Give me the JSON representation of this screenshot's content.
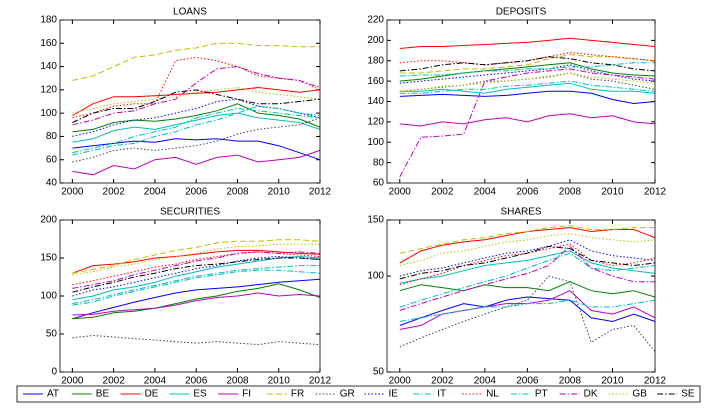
{
  "legend": {
    "entries": [
      {
        "name": "AT",
        "color": "#0000ff",
        "style": "solid"
      },
      {
        "name": "BE",
        "color": "#008000",
        "style": "solid"
      },
      {
        "name": "DE",
        "color": "#ff0000",
        "style": "solid"
      },
      {
        "name": "ES",
        "color": "#00bfbf",
        "style": "solid"
      },
      {
        "name": "FI",
        "color": "#bf00bf",
        "style": "solid"
      },
      {
        "name": "FR",
        "color": "#bfbf00",
        "style": "dashed"
      },
      {
        "name": "GR",
        "color": "#404040",
        "style": "dotted"
      },
      {
        "name": "IE",
        "color": "#0000ff",
        "style": "dotted"
      },
      {
        "name": "IT",
        "color": "#00bfbf",
        "style": "dashdot"
      },
      {
        "name": "NL",
        "color": "#ff0000",
        "style": "dotted"
      },
      {
        "name": "PT",
        "color": "#00bfbf",
        "style": "dashdot"
      },
      {
        "name": "DK",
        "color": "#bf00bf",
        "style": "dashdot"
      },
      {
        "name": "GB",
        "color": "#bfbf00",
        "style": "dotted"
      },
      {
        "name": "SE",
        "color": "#000000",
        "style": "dashdot"
      }
    ]
  },
  "chart_data": [
    {
      "type": "line",
      "title": "LOANS",
      "x": [
        2000,
        2001,
        2002,
        2003,
        2004,
        2005,
        2006,
        2007,
        2008,
        2009,
        2010,
        2011,
        2012
      ],
      "xlim": [
        1999.4,
        2012
      ],
      "xticks": [
        2000,
        2002,
        2004,
        2006,
        2008,
        2010,
        2012
      ],
      "ylim": [
        40,
        180
      ],
      "yticks": [
        40,
        60,
        80,
        100,
        120,
        140,
        160,
        180
      ],
      "yscale": "linear",
      "series": [
        {
          "values": [
            70,
            72,
            74,
            76,
            75,
            78,
            77,
            78,
            76,
            76,
            72,
            66,
            60
          ]
        },
        {
          "values": [
            84,
            86,
            92,
            94,
            93,
            95,
            98,
            102,
            108,
            100,
            98,
            95,
            88
          ]
        },
        {
          "values": [
            98,
            108,
            114,
            114,
            115,
            116,
            117,
            118,
            120,
            122,
            120,
            118,
            120
          ]
        },
        {
          "values": [
            75,
            78,
            85,
            88,
            86,
            90,
            94,
            98,
            100,
            96,
            94,
            92,
            86
          ]
        },
        {
          "values": [
            50,
            47,
            55,
            52,
            60,
            62,
            56,
            62,
            64,
            58,
            60,
            62,
            68
          ]
        },
        {
          "values": [
            128,
            132,
            140,
            148,
            150,
            154,
            156,
            160,
            160,
            158,
            158,
            157,
            157
          ]
        },
        {
          "values": [
            58,
            62,
            68,
            70,
            68,
            70,
            72,
            76,
            82,
            86,
            88,
            90,
            96
          ]
        },
        {
          "values": [
            80,
            84,
            90,
            94,
            96,
            100,
            104,
            110,
            112,
            106,
            104,
            100,
            96
          ]
        },
        {
          "values": [
            66,
            70,
            74,
            80,
            84,
            88,
            96,
            100,
            104,
            102,
            100,
            98,
            96
          ]
        },
        {
          "values": [
            96,
            100,
            106,
            108,
            108,
            145,
            148,
            145,
            140,
            132,
            130,
            128,
            120
          ]
        },
        {
          "values": [
            64,
            68,
            72,
            74,
            80,
            84,
            90,
            94,
            100,
            106,
            104,
            100,
            98
          ]
        },
        {
          "values": [
            90,
            94,
            100,
            102,
            108,
            112,
            126,
            138,
            140,
            134,
            130,
            128,
            122
          ]
        },
        {
          "values": [
            100,
            104,
            108,
            110,
            112,
            114,
            118,
            120,
            122,
            118,
            116,
            114,
            112
          ]
        },
        {
          "values": [
            92,
            100,
            104,
            104,
            110,
            118,
            120,
            116,
            112,
            108,
            108,
            110,
            112
          ]
        }
      ]
    },
    {
      "type": "line",
      "title": "DEPOSITS",
      "x": [
        2000,
        2001,
        2002,
        2003,
        2004,
        2005,
        2006,
        2007,
        2008,
        2009,
        2010,
        2011,
        2012
      ],
      "xlim": [
        1999.4,
        2012
      ],
      "xticks": [
        2000,
        2002,
        2004,
        2006,
        2008,
        2010,
        2012
      ],
      "ylim": [
        60,
        220
      ],
      "yticks": [
        60,
        80,
        100,
        120,
        140,
        160,
        180,
        200,
        220
      ],
      "yscale": "linear",
      "series": [
        {
          "values": [
            145,
            146,
            147,
            146,
            145,
            146,
            148,
            150,
            150,
            148,
            142,
            138,
            140
          ]
        },
        {
          "values": [
            160,
            162,
            165,
            168,
            170,
            172,
            174,
            176,
            178,
            172,
            168,
            166,
            165
          ]
        },
        {
          "values": [
            192,
            194,
            194,
            195,
            196,
            197,
            198,
            200,
            202,
            200,
            198,
            196,
            194
          ]
        },
        {
          "values": [
            150,
            150,
            152,
            150,
            148,
            152,
            154,
            156,
            158,
            152,
            150,
            150,
            148
          ]
        },
        {
          "values": [
            118,
            116,
            120,
            118,
            122,
            124,
            120,
            126,
            128,
            124,
            126,
            120,
            118
          ]
        },
        {
          "values": [
            168,
            168,
            170,
            172,
            172,
            174,
            176,
            182,
            186,
            184,
            184,
            182,
            180
          ]
        },
        {
          "values": [
            150,
            152,
            154,
            156,
            160,
            160,
            162,
            164,
            168,
            162,
            160,
            156,
            152
          ]
        },
        {
          "values": [
            158,
            160,
            162,
            164,
            166,
            168,
            170,
            172,
            176,
            170,
            166,
            162,
            160
          ]
        },
        {
          "values": [
            148,
            148,
            150,
            152,
            152,
            155,
            156,
            158,
            160,
            156,
            154,
            152,
            150
          ]
        },
        {
          "values": [
            178,
            180,
            180,
            178,
            176,
            178,
            180,
            184,
            188,
            186,
            184,
            182,
            180
          ]
        },
        {
          "values": [
            165,
            166,
            166,
            168,
            170,
            170,
            172,
            172,
            174,
            174,
            176,
            178,
            178
          ]
        },
        {
          "values": [
            66,
            105,
            106,
            108,
            160,
            164,
            168,
            170,
            172,
            168,
            166,
            164,
            162
          ]
        },
        {
          "values": [
            150,
            152,
            155,
            156,
            158,
            160,
            162,
            165,
            168,
            164,
            162,
            160,
            158
          ]
        },
        {
          "values": [
            170,
            172,
            176,
            178,
            176,
            178,
            180,
            184,
            182,
            178,
            176,
            172,
            170
          ]
        }
      ]
    },
    {
      "type": "line",
      "title": "SECURITIES",
      "x": [
        2000,
        2001,
        2002,
        2003,
        2004,
        2005,
        2006,
        2007,
        2008,
        2009,
        2010,
        2011,
        2012
      ],
      "xlim": [
        1999.4,
        2012
      ],
      "xticks": [
        2000,
        2002,
        2004,
        2006,
        2008,
        2010,
        2012
      ],
      "ylim": [
        0,
        200
      ],
      "yticks": [
        0,
        50,
        100,
        150,
        200
      ],
      "yscale": "linear",
      "series": [
        {
          "values": [
            70,
            78,
            85,
            92,
            98,
            104,
            108,
            110,
            112,
            115,
            118,
            120,
            122
          ]
        },
        {
          "values": [
            70,
            72,
            78,
            80,
            84,
            90,
            96,
            100,
            106,
            110,
            116,
            108,
            98
          ]
        },
        {
          "values": [
            130,
            140,
            142,
            145,
            150,
            152,
            155,
            158,
            160,
            160,
            158,
            156,
            155
          ]
        },
        {
          "values": [
            95,
            100,
            108,
            112,
            118,
            126,
            132,
            138,
            142,
            146,
            150,
            152,
            150
          ]
        },
        {
          "values": [
            75,
            76,
            80,
            82,
            84,
            88,
            94,
            98,
            100,
            104,
            100,
            102,
            100
          ]
        },
        {
          "values": [
            130,
            135,
            140,
            148,
            154,
            160,
            164,
            170,
            172,
            172,
            174,
            174,
            172
          ]
        },
        {
          "values": [
            45,
            48,
            46,
            44,
            42,
            40,
            38,
            40,
            38,
            36,
            40,
            38,
            36
          ]
        },
        {
          "values": [
            100,
            108,
            112,
            118,
            124,
            130,
            136,
            140,
            146,
            150,
            152,
            150,
            148
          ]
        },
        {
          "values": [
            90,
            95,
            102,
            108,
            114,
            120,
            126,
            130,
            134,
            136,
            138,
            140,
            140
          ]
        },
        {
          "values": [
            115,
            120,
            126,
            132,
            138,
            142,
            148,
            152,
            156,
            158,
            156,
            154,
            152
          ]
        },
        {
          "values": [
            88,
            92,
            100,
            106,
            112,
            118,
            124,
            128,
            132,
            134,
            134,
            132,
            130
          ]
        },
        {
          "values": [
            110,
            115,
            120,
            128,
            134,
            140,
            146,
            150,
            156,
            158,
            156,
            158,
            156
          ]
        },
        {
          "values": [
            128,
            132,
            138,
            142,
            148,
            152,
            156,
            162,
            165,
            166,
            168,
            168,
            168
          ]
        },
        {
          "values": [
            105,
            112,
            118,
            125,
            130,
            136,
            140,
            142,
            145,
            148,
            150,
            150,
            148
          ]
        }
      ]
    },
    {
      "type": "line",
      "title": "SHARES",
      "x": [
        2000,
        2001,
        2002,
        2003,
        2004,
        2005,
        2006,
        2007,
        2008,
        2009,
        2010,
        2011,
        2012
      ],
      "xlim": [
        1999.4,
        2012
      ],
      "xticks": [
        2000,
        2002,
        2004,
        2006,
        2008,
        2010,
        2012
      ],
      "ylim": [
        50,
        150
      ],
      "yticks": [
        50,
        100,
        150
      ],
      "yscale": "log",
      "series": [
        {
          "values": [
            70,
            74,
            78,
            82,
            80,
            84,
            86,
            85,
            84,
            74,
            72,
            76,
            72
          ]
        },
        {
          "values": [
            90,
            94,
            92,
            90,
            94,
            92,
            92,
            90,
            96,
            90,
            88,
            90,
            86
          ]
        },
        {
          "values": [
            110,
            120,
            125,
            128,
            130,
            134,
            138,
            140,
            142,
            138,
            140,
            140,
            132
          ]
        },
        {
          "values": [
            95,
            98,
            100,
            104,
            108,
            110,
            112,
            116,
            120,
            110,
            106,
            104,
            102
          ]
        },
        {
          "values": [
            68,
            70,
            76,
            78,
            80,
            82,
            82,
            84,
            90,
            78,
            76,
            80,
            74
          ]
        },
        {
          "values": [
            118,
            122,
            126,
            130,
            132,
            136,
            138,
            142,
            144,
            140,
            140,
            142,
            142
          ]
        },
        {
          "values": [
            60,
            64,
            68,
            72,
            76,
            80,
            84,
            100,
            96,
            62,
            68,
            70,
            58
          ]
        },
        {
          "values": [
            100,
            104,
            106,
            110,
            114,
            118,
            120,
            124,
            130,
            120,
            116,
            114,
            112
          ]
        },
        {
          "values": [
            80,
            84,
            88,
            92,
            96,
            100,
            106,
            112,
            118,
            106,
            104,
            106,
            108
          ]
        },
        {
          "values": [
            94,
            98,
            102,
            108,
            112,
            116,
            118,
            122,
            126,
            112,
            108,
            110,
            114
          ]
        },
        {
          "values": [
            72,
            74,
            76,
            78,
            80,
            80,
            82,
            82,
            84,
            80,
            80,
            82,
            84
          ]
        },
        {
          "values": [
            78,
            82,
            86,
            90,
            94,
            98,
            102,
            108,
            124,
            106,
            100,
            96,
            96
          ]
        },
        {
          "values": [
            108,
            112,
            118,
            120,
            124,
            128,
            130,
            134,
            136,
            132,
            130,
            128,
            130
          ]
        },
        {
          "values": [
            98,
            102,
            104,
            108,
            110,
            114,
            118,
            124,
            122,
            112,
            110,
            108,
            110
          ]
        }
      ]
    }
  ]
}
